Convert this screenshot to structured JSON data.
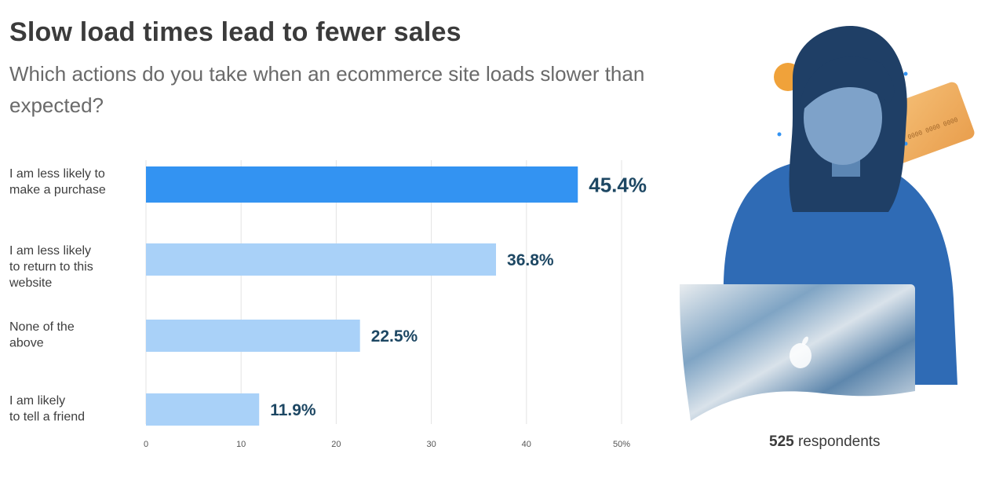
{
  "header": {
    "title": "Slow load times lead to fewer sales",
    "subtitle": "Which actions do you take when an ecommerce site loads slower than expected?"
  },
  "footer": {
    "respondents_count": "525",
    "respondents_label": "respondents"
  },
  "colors": {
    "highlight_bar": "#3393f2",
    "bar": "#a9d1f8",
    "value_text": "#1d4763",
    "grid": "#e3e3e3"
  },
  "illustration": {
    "description_icon": "woman-with-laptop-and-credit-card-icon"
  },
  "chart_data": {
    "type": "bar",
    "orientation": "horizontal",
    "categories": [
      [
        "I am less likely to",
        "make a purchase"
      ],
      [
        "I am less likely",
        "to return to this",
        "website"
      ],
      [
        "None of the",
        "above"
      ],
      [
        "I am likely",
        "to tell a friend"
      ]
    ],
    "values": [
      45.4,
      36.8,
      22.5,
      11.9
    ],
    "value_labels": [
      "45.4%",
      "36.8%",
      "22.5%",
      "11.9%"
    ],
    "highlight_index": 0,
    "xticks": [
      "0",
      "10",
      "20",
      "30",
      "40",
      "50%"
    ],
    "xlim": [
      0,
      50
    ],
    "grid": true
  }
}
